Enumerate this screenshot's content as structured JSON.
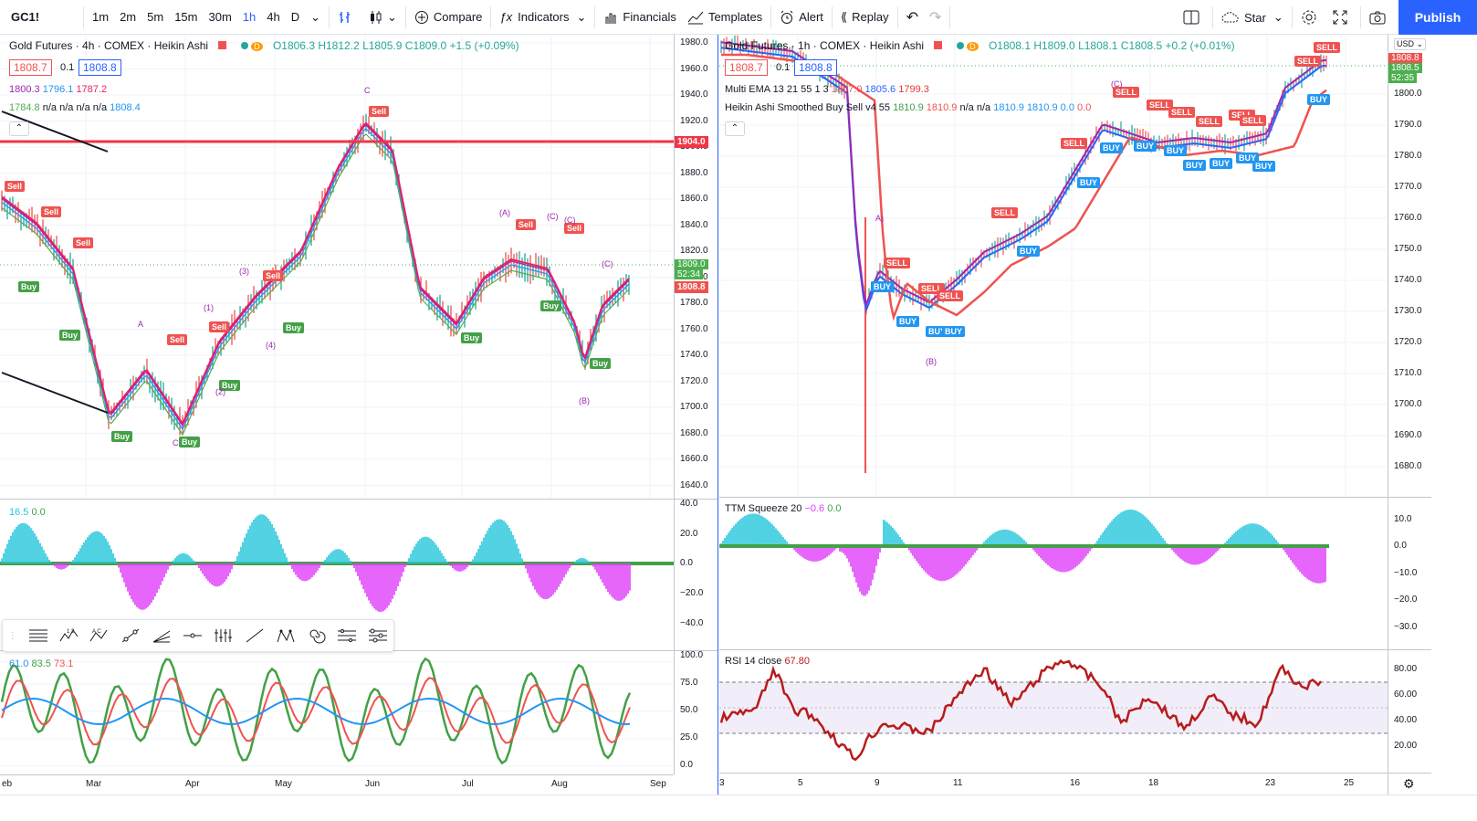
{
  "toolbar": {
    "symbol": "GC1!",
    "intervals": [
      "1m",
      "2m",
      "5m",
      "15m",
      "30m",
      "1h",
      "4h",
      "D"
    ],
    "active_interval": "1h",
    "compare": "Compare",
    "indicators": "Indicators",
    "financials": "Financials",
    "templates": "Templates",
    "alert": "Alert",
    "replay": "Replay",
    "star": "Star",
    "publish": "Publish"
  },
  "left_chart": {
    "title": "Gold Futures · 4h · COMEX · Heikin Ashi",
    "d_badge": "D",
    "ohlc": {
      "o": "O1806.3",
      "h": "H1812.2",
      "l": "L1805.9",
      "c": "C1809.0",
      "chg": "+1.5 (+0.09%)"
    },
    "bid": "1808.7",
    "spread": "0.1",
    "ask": "1808.8",
    "ind1": [
      "1800.3",
      "1796.1",
      "1787.2"
    ],
    "ind2": {
      "v1": "1784.8",
      "na": [
        "n/a",
        "n/a",
        "n/a",
        "n/a"
      ],
      "v2": "1808.4"
    },
    "price_ticks": [
      "1980.0",
      "1960.0",
      "1940.0",
      "1920.0",
      "1900.0",
      "1880.0",
      "1860.0",
      "1840.0",
      "1820.0",
      "1800.0",
      "1780.0",
      "1760.0",
      "1740.0",
      "1720.0",
      "1700.0",
      "1680.0",
      "1660.0",
      "1640.0"
    ],
    "hline_label": "1904.0",
    "last_price": "1809.0",
    "countdown": "52:34",
    "last_price2": "1808.8",
    "osc_legend": [
      "16.5",
      "0.0"
    ],
    "osc_ticks": [
      "40.0",
      "20.0",
      "0.0",
      "−20.0",
      "−40.0"
    ],
    "stoch_legend": [
      "61.0",
      "83.5",
      "73.1"
    ],
    "stoch_ticks": [
      "100.0",
      "75.0",
      "50.0",
      "25.0",
      "0.0"
    ],
    "time_ticks": [
      "eb",
      "Mar",
      "Apr",
      "May",
      "Jun",
      "Jul",
      "Aug",
      "Sep"
    ],
    "sell_label": "Sell",
    "buy_label": "Buy",
    "waves": [
      "C",
      "(3)",
      "(1)",
      "(4)",
      "(2)",
      "A",
      "C",
      "(A)",
      "(C)",
      "(C)",
      "(B)",
      "(C)"
    ]
  },
  "right_chart": {
    "title": "Gold Futures · 1h · COMEX · Heikin Ashi",
    "d_badge": "D",
    "ohlc": {
      "o": "O1808.1",
      "h": "H1809.0",
      "l": "L1808.1",
      "c": "C1808.5",
      "chg": "+0.2 (+0.01%)"
    },
    "bid": "1808.7",
    "spread": "0.1",
    "ask": "1808.8",
    "ema_legend": {
      "name": "Multi EMA 13 21 55 1 3",
      "v": [
        "1807.0",
        "1805.6",
        "1799.3"
      ]
    },
    "ha_legend": {
      "name": "Heikin Ashi Smoothed Buy Sell v4 55",
      "v": [
        "1810.9",
        "1810.9",
        "n/a",
        "n/a",
        "1810.9",
        "1810.9",
        "0.0",
        "0.0"
      ]
    },
    "currency": "USD",
    "price_ticks": [
      "1800.0",
      "1790.0",
      "1780.0",
      "1770.0",
      "1760.0",
      "1750.0",
      "1740.0",
      "1730.0",
      "1720.0",
      "1710.0",
      "1700.0",
      "1690.0",
      "1680.0"
    ],
    "last_price": "1808.5",
    "countdown": "52:35",
    "last_price_top": "1808.8",
    "squeeze_legend": {
      "name": "TTM Squeeze 20",
      "v1": "−0.6",
      "v2": "0.0"
    },
    "squeeze_ticks": [
      "10.0",
      "0.0",
      "−10.0",
      "−20.0",
      "−30.0"
    ],
    "rsi_legend": {
      "name": "RSI 14 close",
      "v": "67.80"
    },
    "rsi_ticks": [
      "80.00",
      "60.00",
      "40.00",
      "20.00"
    ],
    "time_ticks": [
      "3",
      "5",
      "9",
      "11",
      "16",
      "18",
      "23",
      "25"
    ],
    "sell_label": "SELL",
    "buy_label": "BUY",
    "waves": [
      "A)",
      "(B)",
      "(C)"
    ]
  },
  "colors": {
    "accent": "#2962ff",
    "sell": "#ef5350",
    "buy": "#43a047",
    "blue_buy": "#2196f3",
    "cyan": "#26c6da",
    "magenta": "#e040fb",
    "green": "#4caf50"
  }
}
